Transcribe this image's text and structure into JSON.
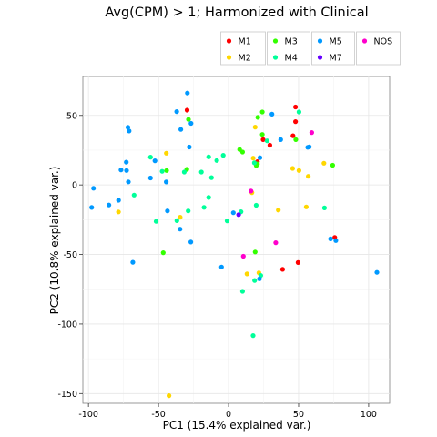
{
  "chart_data": {
    "type": "scatter",
    "title": "Avg(CPM) > 1; Harmonized with Clinical",
    "xlabel": "PC1 (15.4% explained var.)",
    "ylabel": "PC2 (10.8% explained var.)",
    "xlim": [
      -104,
      115
    ],
    "ylim": [
      -157,
      78
    ],
    "xticks": [
      -100,
      -50,
      0,
      50,
      100
    ],
    "yticks": [
      50,
      0,
      -50,
      -100,
      -150
    ],
    "grid": true,
    "legend_position": "top",
    "series": [
      {
        "name": "M1",
        "color": "#ff0000",
        "points": [
          [
            -29.6,
            53.8
          ],
          [
            47.8,
            56.1
          ],
          [
            47.8,
            45.5
          ],
          [
            24.7,
            32.6
          ],
          [
            46.0,
            35.4
          ],
          [
            29.5,
            28.6
          ],
          [
            20.6,
            16.7
          ],
          [
            38.6,
            -60.7
          ],
          [
            49.6,
            -55.8
          ],
          [
            75.8,
            -37.7
          ]
        ]
      },
      {
        "name": "M2",
        "color": "#ffd700",
        "points": [
          [
            19.0,
            41.6
          ],
          [
            45.7,
            11.9
          ],
          [
            50.3,
            10.4
          ],
          [
            56.9,
            6.2
          ],
          [
            68.1,
            15.6
          ],
          [
            17.6,
            19.3
          ],
          [
            16.7,
            -5.5
          ],
          [
            -44.4,
            22.8
          ],
          [
            -78.6,
            -19.4
          ],
          [
            -34.5,
            -23.2
          ],
          [
            35.5,
            -18.1
          ],
          [
            55.5,
            -15.8
          ],
          [
            13.2,
            -64.0
          ],
          [
            21.7,
            -63.2
          ],
          [
            -42.5,
            -151.5
          ]
        ]
      },
      {
        "name": "M3",
        "color": "#33ff00",
        "points": [
          [
            -28.6,
            47.1
          ],
          [
            20.9,
            48.6
          ],
          [
            24.1,
            52.5
          ],
          [
            24.1,
            36.3
          ],
          [
            48.0,
            32.6
          ],
          [
            74.3,
            14.2
          ],
          [
            20.6,
            15.1
          ],
          [
            -29.8,
            11.2
          ],
          [
            -44.2,
            10.4
          ],
          [
            7.9,
            25.5
          ],
          [
            10.0,
            23.7
          ],
          [
            19.8,
            13.9
          ],
          [
            19.0,
            -48.2
          ],
          [
            -46.6,
            -48.7
          ]
        ]
      },
      {
        "name": "M4",
        "color": "#00ff99",
        "points": [
          [
            50.3,
            52.5
          ],
          [
            27.5,
            31.7
          ],
          [
            18.4,
            15.9
          ],
          [
            -14.2,
            20.2
          ],
          [
            -3.8,
            21.3
          ],
          [
            -8.4,
            17.6
          ],
          [
            -19.4,
            9.3
          ],
          [
            -55.7,
            20.0
          ],
          [
            -47.4,
            9.8
          ],
          [
            -31.6,
            9.3
          ],
          [
            -12.2,
            5.3
          ],
          [
            -14.2,
            -9.0
          ],
          [
            -67.4,
            -7.3
          ],
          [
            -28.8,
            -18.7
          ],
          [
            -36.9,
            -25.7
          ],
          [
            -51.7,
            -26.2
          ],
          [
            -17.5,
            -16.1
          ],
          [
            -1.0,
            -25.8
          ],
          [
            8.9,
            -19.3
          ],
          [
            19.7,
            -14.6
          ],
          [
            68.5,
            -16.5
          ],
          [
            18.6,
            -68.7
          ],
          [
            10.0,
            -76.5
          ],
          [
            23.0,
            -65.1
          ],
          [
            17.5,
            -108.3
          ]
        ]
      },
      {
        "name": "M5",
        "color": "#0099ff",
        "points": [
          [
            -29.4,
            66.1
          ],
          [
            -37.0,
            52.7
          ],
          [
            -26.8,
            44.3
          ],
          [
            -34.1,
            39.9
          ],
          [
            -71.8,
            41.5
          ],
          [
            -71.0,
            38.8
          ],
          [
            -73.0,
            16.4
          ],
          [
            -76.8,
            10.8
          ],
          [
            -72.8,
            10.4
          ],
          [
            -52.5,
            17.4
          ],
          [
            -55.7,
            5.0
          ],
          [
            -28.0,
            27.3
          ],
          [
            -44.5,
            2.1
          ],
          [
            -96.4,
            -2.4
          ],
          [
            -71.5,
            2.2
          ],
          [
            -97.7,
            -16.2
          ],
          [
            -85.4,
            -14.4
          ],
          [
            -78.5,
            -11.0
          ],
          [
            -43.6,
            -18.7
          ],
          [
            -34.6,
            -31.8
          ],
          [
            -26.9,
            -41.1
          ],
          [
            -68.3,
            -55.6
          ],
          [
            3.4,
            -20.0
          ],
          [
            -5.0,
            -59.0
          ],
          [
            31.0,
            50.9
          ],
          [
            37.2,
            32.6
          ],
          [
            56.5,
            27.1
          ],
          [
            57.6,
            27.4
          ],
          [
            22.4,
            19.6
          ],
          [
            72.8,
            -38.8
          ],
          [
            76.6,
            -40.0
          ],
          [
            105.9,
            -62.9
          ],
          [
            22.1,
            -67.5
          ]
        ]
      },
      {
        "name": "M7",
        "color": "#6600ff",
        "points": [
          [
            7.2,
            -21.4
          ]
        ]
      },
      {
        "name": "NOS",
        "color": "#ff00cc",
        "points": [
          [
            59.4,
            37.7
          ],
          [
            16.0,
            -4.4
          ],
          [
            33.7,
            -41.5
          ],
          [
            10.6,
            -51.3
          ]
        ]
      }
    ]
  }
}
